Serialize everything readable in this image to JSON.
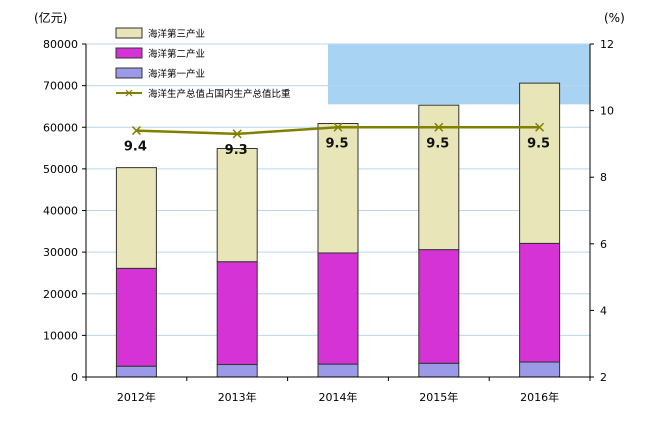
{
  "chart_data": {
    "type": "bar",
    "stacked": true,
    "categories": [
      "2012年",
      "2013年",
      "2014年",
      "2015年",
      "2016年"
    ],
    "left_unit": "(亿元)",
    "right_unit": "(%)",
    "ylim_left": [
      0,
      80000
    ],
    "yticks_left": [
      "0",
      "10000",
      "20000",
      "30000",
      "40000",
      "50000",
      "60000",
      "70000",
      "80000"
    ],
    "ylim_right": [
      2,
      12
    ],
    "yticks_right": [
      "2",
      "4",
      "6",
      "8",
      "10",
      "12"
    ],
    "series": [
      {
        "name": "海洋第一产业",
        "values": [
          2600,
          3000,
          3100,
          3300,
          3600
        ],
        "color": "#9a9ae6"
      },
      {
        "name": "海洋第二产业",
        "values": [
          23500,
          24700,
          26700,
          27300,
          28500
        ],
        "color": "#d633d6"
      },
      {
        "name": "海洋第三产业",
        "values": [
          24200,
          27200,
          31100,
          34700,
          38500
        ],
        "color": "#e8e6b8"
      }
    ],
    "line_series": {
      "name": "海洋生产总值占国内生产总值比重",
      "values": [
        9.4,
        9.3,
        9.5,
        9.5,
        9.5
      ],
      "labels": [
        "9.4",
        "9.3",
        "9.5",
        "9.5",
        "9.5"
      ],
      "color": "#808000",
      "axis": "right"
    },
    "legend_position": "top-left"
  }
}
